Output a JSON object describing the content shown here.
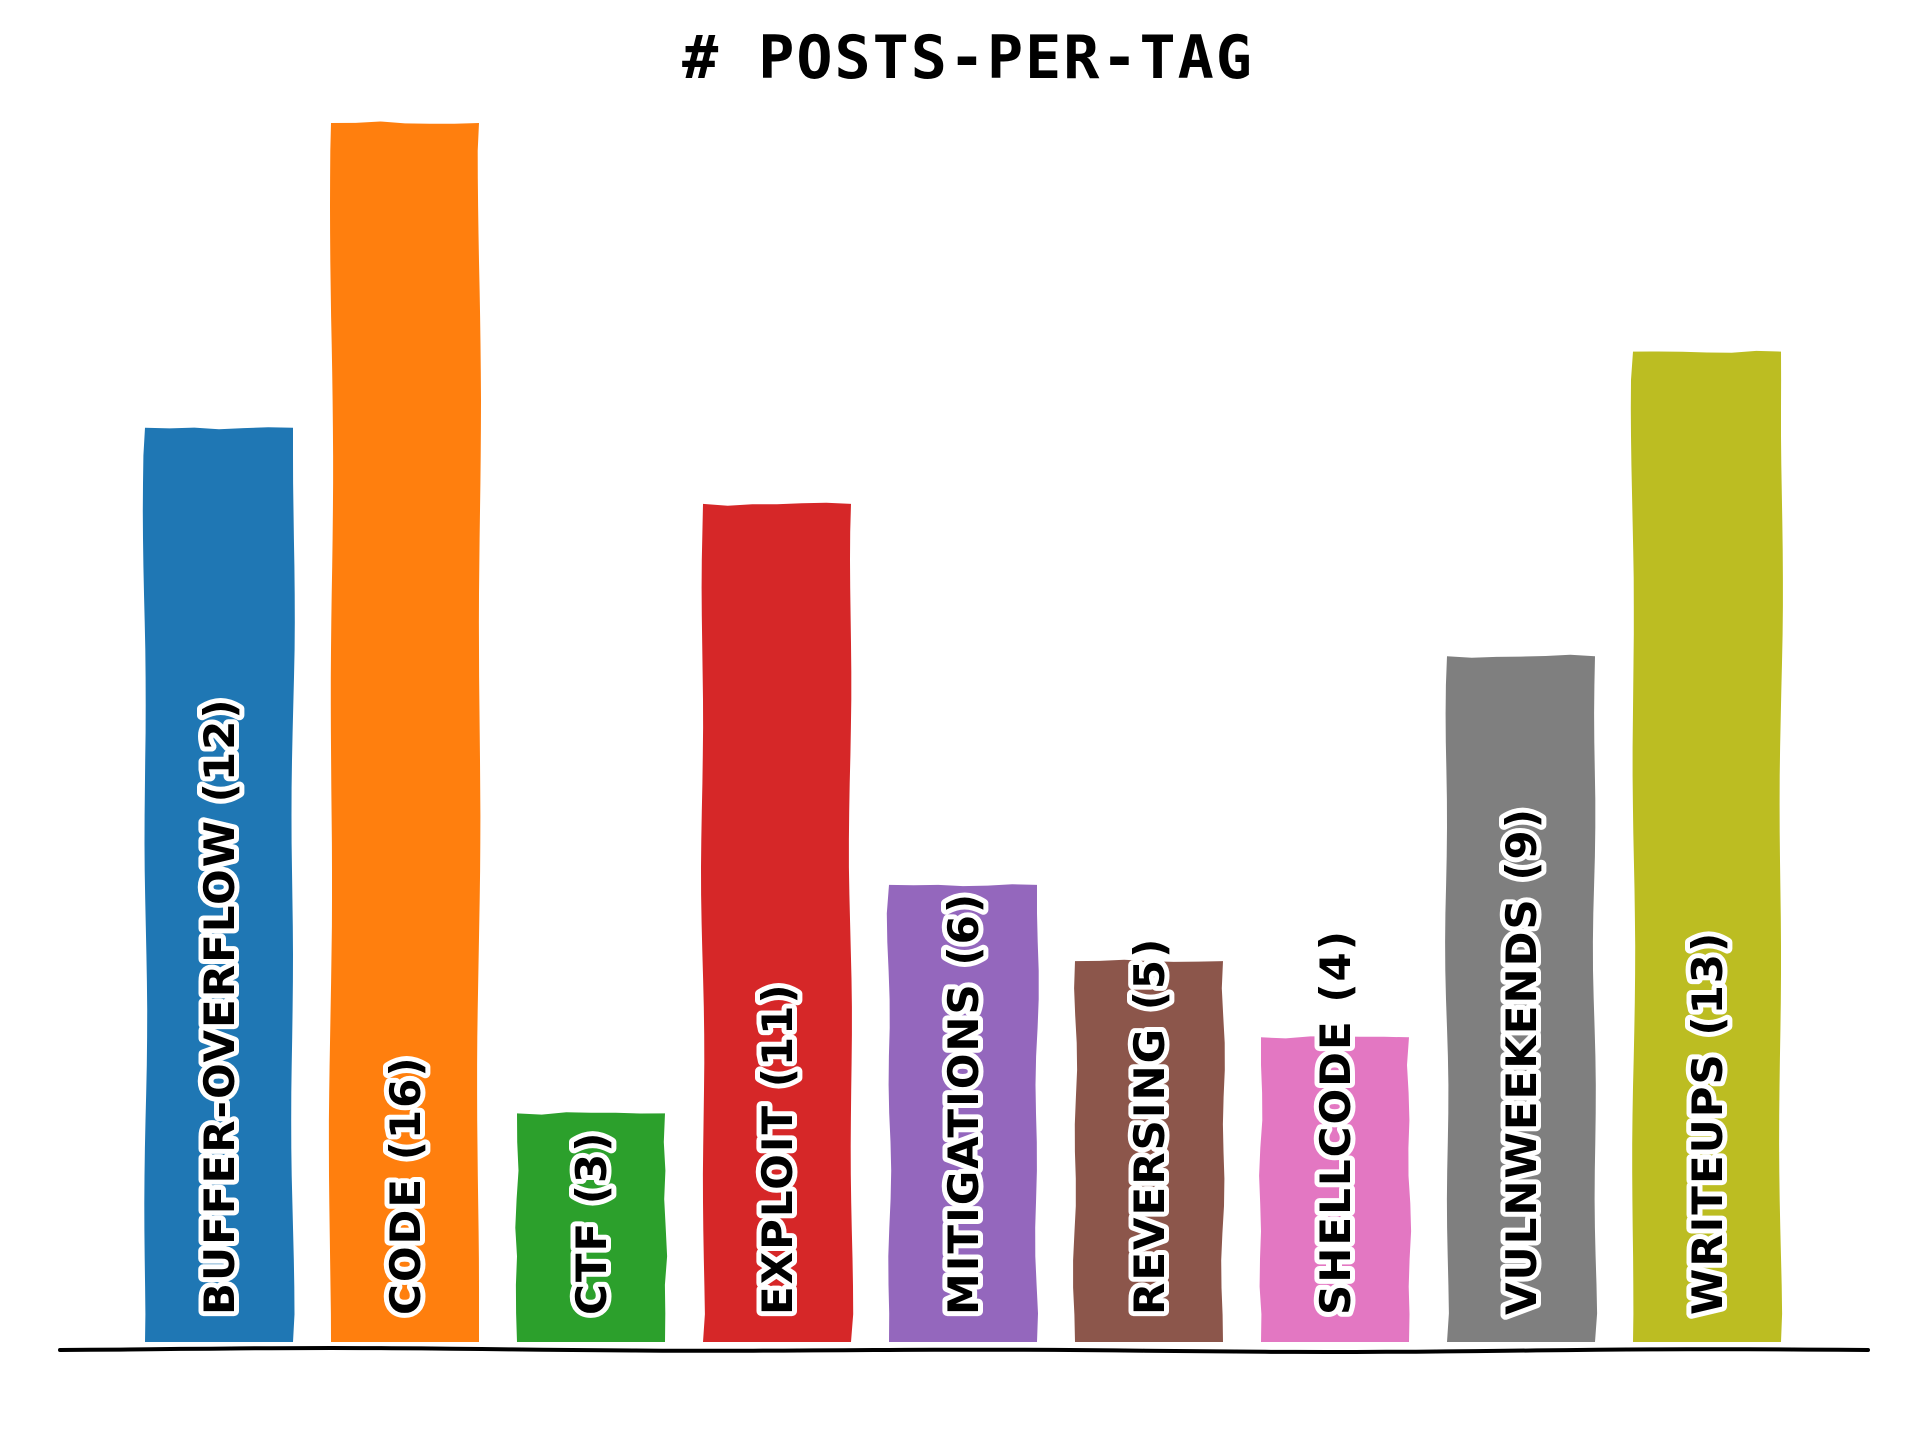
{
  "chart_data": {
    "type": "bar",
    "title": "# POSTS-PER-TAG",
    "categories": [
      "BUFFER-OVERFLOW",
      "CODE",
      "CTF",
      "EXPLOIT",
      "MITIGATIONS",
      "REVERSING",
      "SHELLCODE",
      "VULNWEEKENDS",
      "WRITEUPS"
    ],
    "values": [
      12,
      16,
      3,
      11,
      6,
      5,
      4,
      9,
      13
    ],
    "bar_labels": [
      "BUFFER-OVERFLOW (12)",
      "CODE (16)",
      "CTF (3)",
      "EXPLOIT (11)",
      "MITIGATIONS (6)",
      "REVERSING (5)",
      "SHELLCODE (4)",
      "VULNWEEKENDS (9)",
      "WRITEUPS (13)"
    ],
    "colors": [
      "#1f77b4",
      "#ff7f0e",
      "#2ca02c",
      "#d62728",
      "#9467bd",
      "#8c564b",
      "#e377c2",
      "#7f7f7f",
      "#bcbd22"
    ],
    "xlabel": "",
    "ylabel": "",
    "ylim": [
      0,
      16
    ],
    "grid": false,
    "legend": "none",
    "style": "xkcd"
  }
}
